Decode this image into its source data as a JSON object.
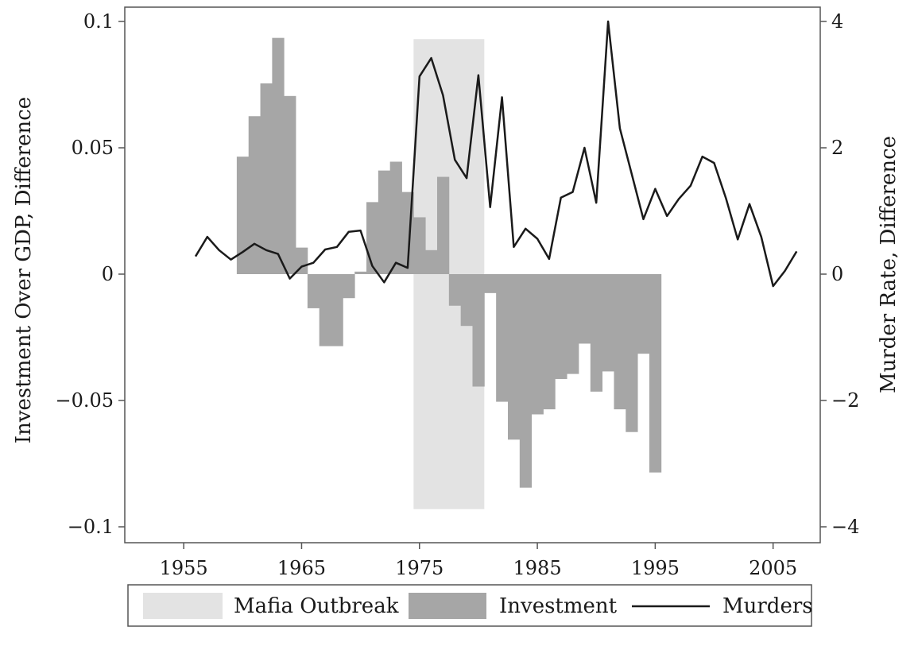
{
  "chart_data": {
    "type": "bar+line",
    "title": "",
    "xlabel": "",
    "ylabel_left": "Investment Over GDP, Difference",
    "ylabel_right": "Murder Rate, Difference",
    "xlim": [
      1950,
      2009
    ],
    "ylim_left": [
      -0.105,
      0.105
    ],
    "ylim_right": [
      -4.2,
      4.2
    ],
    "x_ticks": [
      1955,
      1965,
      1975,
      1985,
      1995,
      2005
    ],
    "x_tick_labels": [
      "1955",
      "1965",
      "1975",
      "1985",
      "1995",
      "2005"
    ],
    "y_left_ticks": [
      0.1,
      0.05,
      0,
      -0.05,
      -0.1
    ],
    "y_left_tick_labels": [
      "0.1",
      "0.05",
      "0",
      "−0.05",
      "−0.1"
    ],
    "y_right_ticks": [
      4,
      2,
      0,
      -2,
      -4
    ],
    "y_right_tick_labels": [
      "4",
      "2",
      "0",
      "−2",
      "−4"
    ],
    "grid": false,
    "legend_position": "bottom",
    "shaded_region": {
      "name": "Mafia Outbreak",
      "x_start": 1974.5,
      "x_end": 1980.5,
      "y_min": -0.093,
      "y_max": 0.093,
      "color": "#e3e3e3"
    },
    "series": [
      {
        "name": "Investment",
        "type": "bar",
        "axis": "left",
        "color": "#a6a6a6",
        "x": [
          1960,
          1961,
          1962,
          1963,
          1964,
          1965,
          1966,
          1967,
          1968,
          1969,
          1970,
          1971,
          1972,
          1973,
          1974,
          1975,
          1976,
          1977,
          1978,
          1979,
          1980,
          1981,
          1982,
          1983,
          1984,
          1985,
          1986,
          1987,
          1988,
          1989,
          1990,
          1991,
          1992,
          1993,
          1994,
          1995
        ],
        "values": [
          0.0465,
          0.0625,
          0.0755,
          0.0935,
          0.0705,
          0.0105,
          -0.0135,
          -0.0285,
          -0.0285,
          -0.0095,
          0.001,
          0.0285,
          0.041,
          0.0445,
          0.0325,
          0.0225,
          0.0095,
          0.0385,
          -0.0125,
          -0.0205,
          -0.0445,
          -0.0075,
          -0.0505,
          -0.0655,
          -0.0845,
          -0.0555,
          -0.0535,
          -0.0415,
          -0.0395,
          -0.0275,
          -0.0465,
          -0.0385,
          -0.0535,
          -0.0625,
          -0.0315,
          -0.0785
        ]
      },
      {
        "name": "Murders",
        "type": "line",
        "axis": "right",
        "color": "#1a1a1a",
        "x": [
          1956,
          1957,
          1958,
          1959,
          1960,
          1961,
          1962,
          1963,
          1964,
          1965,
          1966,
          1967,
          1968,
          1969,
          1970,
          1971,
          1972,
          1973,
          1974,
          1975,
          1976,
          1977,
          1978,
          1979,
          1980,
          1981,
          1982,
          1983,
          1984,
          1985,
          1986,
          1987,
          1988,
          1989,
          1990,
          1991,
          1992,
          1993,
          1994,
          1995,
          1996,
          1997,
          1998,
          1999,
          2000,
          2001,
          2002,
          2003,
          2004,
          2005,
          2006,
          2007
        ],
        "values": [
          0.28,
          0.59,
          0.38,
          0.23,
          0.35,
          0.48,
          0.38,
          0.32,
          -0.07,
          0.12,
          0.18,
          0.39,
          0.43,
          0.67,
          0.69,
          0.13,
          -0.13,
          0.18,
          0.1,
          3.13,
          3.42,
          2.83,
          1.81,
          1.52,
          3.15,
          1.06,
          2.8,
          0.43,
          0.72,
          0.56,
          0.24,
          1.21,
          1.3,
          2.0,
          1.13,
          4.0,
          2.31,
          1.59,
          0.87,
          1.35,
          0.92,
          1.19,
          1.4,
          1.86,
          1.76,
          1.2,
          0.55,
          1.11,
          0.59,
          -0.19,
          0.05,
          0.36
        ]
      }
    ]
  }
}
